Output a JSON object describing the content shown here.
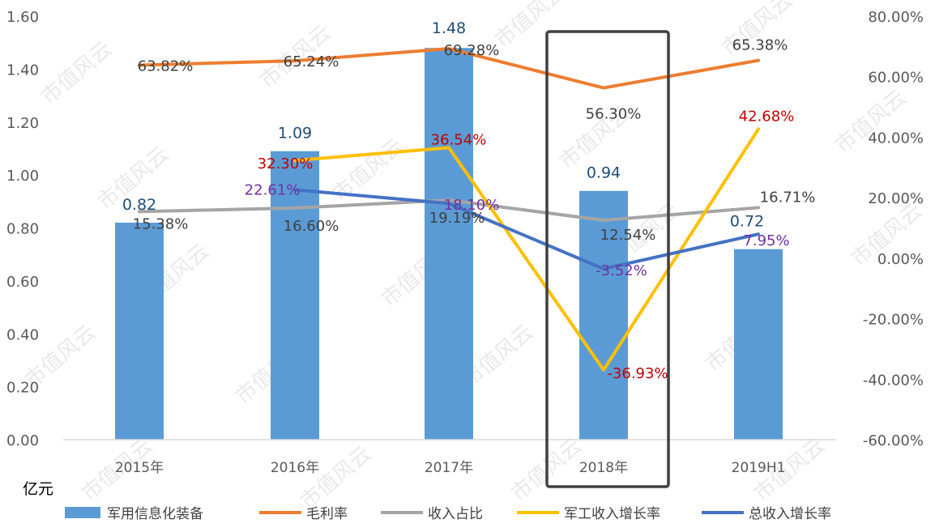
{
  "chart_data": {
    "type": "bar",
    "categories": [
      "2015年",
      "2016年",
      "2017年",
      "2018年",
      "2019H1"
    ],
    "left_axis": {
      "unit_label": "亿元",
      "ylim": [
        0,
        1.6
      ],
      "ticks": [
        "0.00",
        "0.20",
        "0.40",
        "0.60",
        "0.80",
        "1.00",
        "1.20",
        "1.40",
        "1.60"
      ]
    },
    "right_axis": {
      "ylim": [
        -60,
        80
      ],
      "ticks": [
        "-60.00%",
        "-40.00%",
        "-20.00%",
        "0.00%",
        "20.00%",
        "40.00%",
        "60.00%",
        "80.00%"
      ]
    },
    "bar_series": {
      "name": "军用信息化装备",
      "color": "#5b9bd5",
      "values": [
        0.82,
        1.09,
        1.48,
        0.94,
        0.72
      ],
      "labels": [
        "0.82",
        "1.09",
        "1.48",
        "0.94",
        "0.72"
      ]
    },
    "line_series": [
      {
        "name": "毛利率",
        "color": "#ed7d31",
        "label_color": "#404040",
        "values": [
          63.82,
          65.24,
          69.28,
          56.3,
          65.38
        ],
        "labels": [
          "63.82%",
          "65.24%",
          "69.28%",
          "56.30%",
          "65.38%"
        ]
      },
      {
        "name": "收入占比",
        "color": "#a5a5a5",
        "label_color": "#404040",
        "values": [
          15.38,
          16.6,
          19.19,
          12.54,
          16.71
        ],
        "labels": [
          "15.38%",
          "16.60%",
          "19.19%",
          "12.54%",
          "16.71%"
        ]
      },
      {
        "name": "军工收入增长率",
        "color": "#ffc000",
        "label_color": "#c00000",
        "values": [
          null,
          32.3,
          36.54,
          -36.93,
          42.68
        ],
        "labels": [
          "",
          "32.30%",
          "36.54%",
          "-36.93%",
          "42.68%"
        ]
      },
      {
        "name": "总收入增长率",
        "color": "#4472c4",
        "label_color": "#7030a0",
        "values": [
          null,
          22.61,
          18.1,
          -3.52,
          7.95
        ],
        "labels": [
          "",
          "22.61%",
          "18.10%",
          "-3.52%",
          "7.95%"
        ]
      }
    ],
    "highlight_category": "2018年",
    "legend_position": "bottom",
    "grid": false
  },
  "watermark_text": "市值风云"
}
